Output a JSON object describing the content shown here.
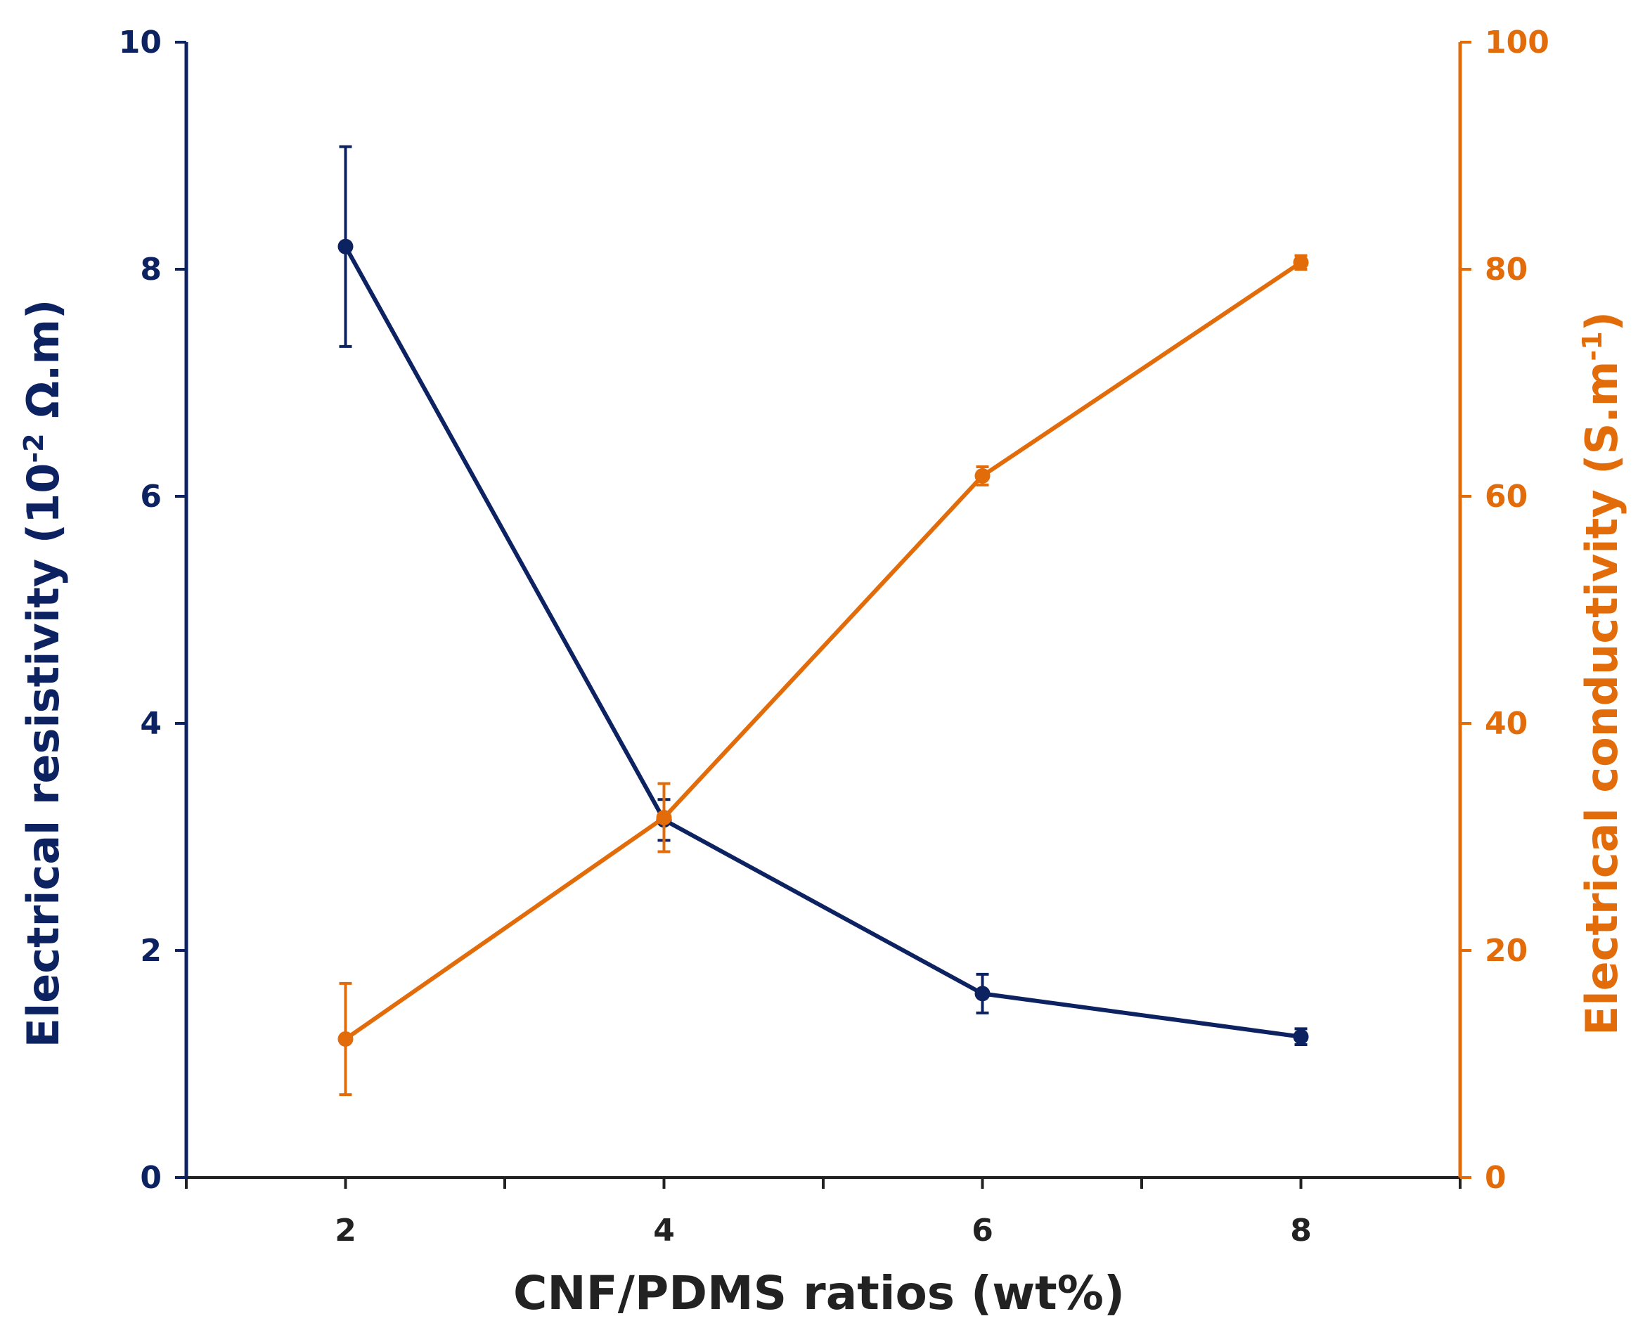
{
  "chart_data": {
    "type": "line",
    "x": [
      2,
      4,
      6,
      8
    ],
    "xlabel": "CNF/PDMS ratios (wt%)",
    "xlim": [
      1,
      9
    ],
    "x_tick_labels": [
      "2",
      "4",
      "6",
      "8"
    ],
    "y_left": {
      "label_prefix": "Electrical resistivity (10",
      "label_sup": "-2",
      "label_suffix": " Ω.m)",
      "lim": [
        0,
        10
      ],
      "tick_labels": [
        "0",
        "2",
        "4",
        "6",
        "8",
        "10"
      ],
      "color": "#0d2261"
    },
    "y_right": {
      "label_prefix": "Electrical conductivity (S.m",
      "label_sup": "-1",
      "label_suffix": ")",
      "lim": [
        0,
        100
      ],
      "tick_labels": [
        "0",
        "20",
        "40",
        "60",
        "80",
        "100"
      ],
      "color": "#e36c0a"
    },
    "series": [
      {
        "axis": "left",
        "color": "#0d2261",
        "values": [
          8.2,
          3.15,
          1.62,
          1.24
        ],
        "errors": [
          0.88,
          0.18,
          0.17,
          0.07
        ]
      },
      {
        "axis": "right",
        "color": "#e36c0a",
        "values": [
          12.2,
          31.7,
          61.8,
          80.6
        ],
        "errors": [
          4.9,
          3.0,
          0.8,
          0.6
        ]
      }
    ],
    "grid": false,
    "legend": "none"
  }
}
